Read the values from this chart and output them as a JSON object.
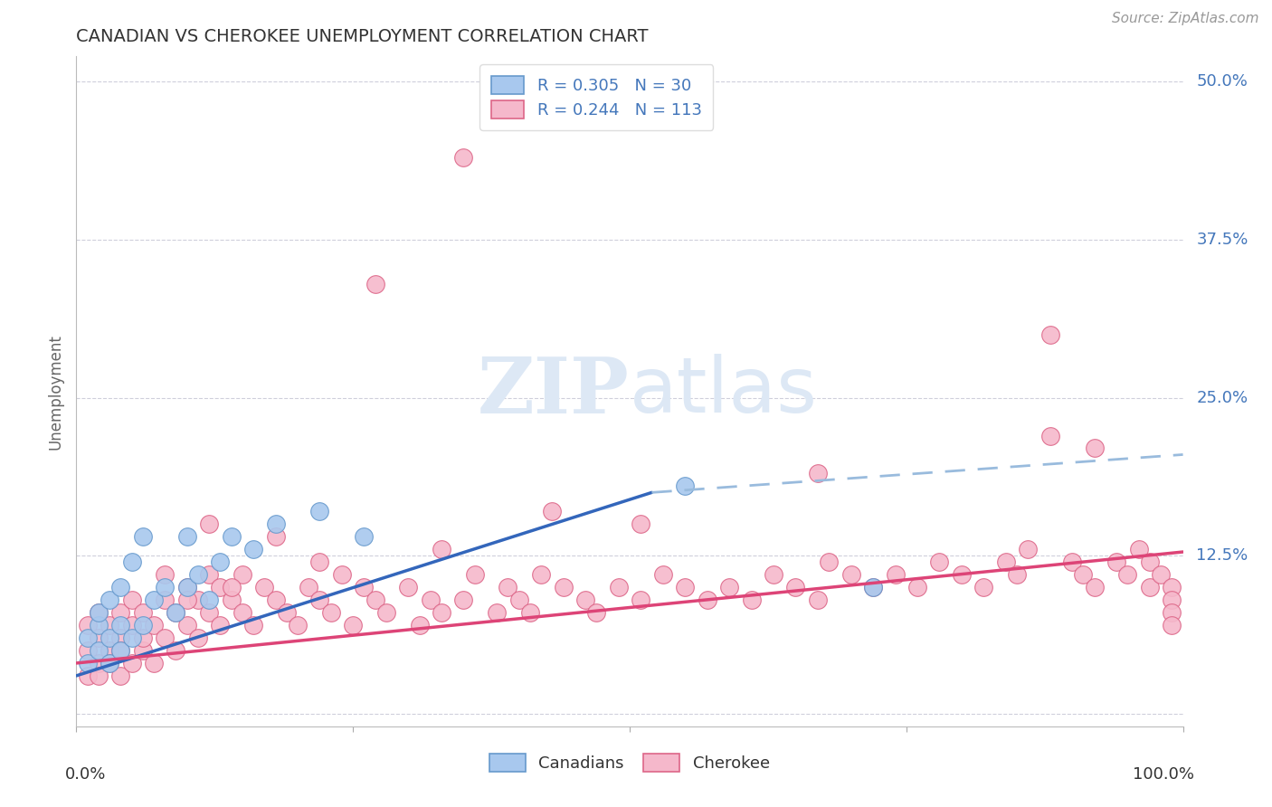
{
  "title": "CANADIAN VS CHEROKEE UNEMPLOYMENT CORRELATION CHART",
  "source": "Source: ZipAtlas.com",
  "ylabel": "Unemployment",
  "yticks": [
    0.0,
    0.125,
    0.25,
    0.375,
    0.5
  ],
  "ytick_labels": [
    "",
    "12.5%",
    "25.0%",
    "37.5%",
    "50.0%"
  ],
  "xlim": [
    0,
    1.0
  ],
  "ylim": [
    -0.01,
    0.52
  ],
  "canadians_R": 0.305,
  "canadians_N": 30,
  "cherokee_R": 0.244,
  "cherokee_N": 113,
  "canadian_color": "#a8c8ee",
  "cherokee_color": "#f5b8cb",
  "canadian_edge": "#6699cc",
  "cherokee_edge": "#dd6688",
  "trend_canadian_solid_color": "#3366bb",
  "trend_canadian_dash_color": "#99bbdd",
  "trend_cherokee_color": "#dd4477",
  "background_color": "#ffffff",
  "grid_color": "#bbbbcc",
  "title_color": "#333333",
  "axis_label_color": "#4477bb",
  "source_color": "#999999",
  "watermark_color": "#dde8f5",
  "canadians_x": [
    0.01,
    0.01,
    0.02,
    0.02,
    0.02,
    0.03,
    0.03,
    0.03,
    0.04,
    0.04,
    0.04,
    0.05,
    0.05,
    0.06,
    0.06,
    0.07,
    0.08,
    0.09,
    0.1,
    0.1,
    0.11,
    0.12,
    0.13,
    0.14,
    0.16,
    0.18,
    0.22,
    0.26,
    0.55,
    0.72
  ],
  "canadians_y": [
    0.04,
    0.06,
    0.05,
    0.07,
    0.08,
    0.04,
    0.06,
    0.09,
    0.05,
    0.07,
    0.1,
    0.06,
    0.12,
    0.07,
    0.14,
    0.09,
    0.1,
    0.08,
    0.1,
    0.14,
    0.11,
    0.09,
    0.12,
    0.14,
    0.13,
    0.15,
    0.16,
    0.14,
    0.18,
    0.1
  ],
  "cherokee_x": [
    0.01,
    0.01,
    0.01,
    0.02,
    0.02,
    0.02,
    0.02,
    0.03,
    0.03,
    0.03,
    0.04,
    0.04,
    0.04,
    0.04,
    0.05,
    0.05,
    0.05,
    0.06,
    0.06,
    0.06,
    0.07,
    0.07,
    0.08,
    0.08,
    0.09,
    0.09,
    0.1,
    0.1,
    0.11,
    0.11,
    0.12,
    0.12,
    0.13,
    0.13,
    0.14,
    0.15,
    0.15,
    0.16,
    0.17,
    0.18,
    0.19,
    0.2,
    0.21,
    0.22,
    0.23,
    0.24,
    0.25,
    0.26,
    0.27,
    0.28,
    0.3,
    0.31,
    0.32,
    0.33,
    0.35,
    0.36,
    0.38,
    0.39,
    0.4,
    0.41,
    0.42,
    0.44,
    0.46,
    0.47,
    0.49,
    0.51,
    0.53,
    0.55,
    0.57,
    0.59,
    0.61,
    0.63,
    0.65,
    0.67,
    0.68,
    0.7,
    0.72,
    0.74,
    0.76,
    0.78,
    0.8,
    0.82,
    0.84,
    0.85,
    0.86,
    0.88,
    0.9,
    0.91,
    0.92,
    0.94,
    0.95,
    0.96,
    0.97,
    0.97,
    0.98,
    0.99,
    0.99,
    0.99,
    0.99,
    0.35,
    0.27,
    0.88,
    0.92,
    0.67,
    0.51,
    0.43,
    0.33,
    0.22,
    0.18,
    0.14,
    0.12,
    0.1,
    0.08
  ],
  "cherokee_y": [
    0.03,
    0.05,
    0.07,
    0.04,
    0.06,
    0.08,
    0.03,
    0.05,
    0.07,
    0.04,
    0.03,
    0.06,
    0.08,
    0.05,
    0.04,
    0.07,
    0.09,
    0.05,
    0.08,
    0.06,
    0.07,
    0.04,
    0.06,
    0.09,
    0.05,
    0.08,
    0.07,
    0.1,
    0.06,
    0.09,
    0.08,
    0.11,
    0.07,
    0.1,
    0.09,
    0.08,
    0.11,
    0.07,
    0.1,
    0.09,
    0.08,
    0.07,
    0.1,
    0.09,
    0.08,
    0.11,
    0.07,
    0.1,
    0.09,
    0.08,
    0.1,
    0.07,
    0.09,
    0.08,
    0.09,
    0.11,
    0.08,
    0.1,
    0.09,
    0.08,
    0.11,
    0.1,
    0.09,
    0.08,
    0.1,
    0.09,
    0.11,
    0.1,
    0.09,
    0.1,
    0.09,
    0.11,
    0.1,
    0.09,
    0.12,
    0.11,
    0.1,
    0.11,
    0.1,
    0.12,
    0.11,
    0.1,
    0.12,
    0.11,
    0.13,
    0.22,
    0.12,
    0.11,
    0.1,
    0.12,
    0.11,
    0.13,
    0.1,
    0.12,
    0.11,
    0.1,
    0.09,
    0.08,
    0.07,
    0.44,
    0.34,
    0.3,
    0.21,
    0.19,
    0.15,
    0.16,
    0.13,
    0.12,
    0.14,
    0.1,
    0.15,
    0.09,
    0.11
  ],
  "trend_can_x0": 0.0,
  "trend_can_y0": 0.03,
  "trend_can_x_solid_end": 0.52,
  "trend_can_y_solid_end": 0.175,
  "trend_can_x_dash_end": 1.0,
  "trend_can_y_dash_end": 0.205,
  "trend_cher_x0": 0.0,
  "trend_cher_y0": 0.04,
  "trend_cher_x1": 1.0,
  "trend_cher_y1": 0.128
}
